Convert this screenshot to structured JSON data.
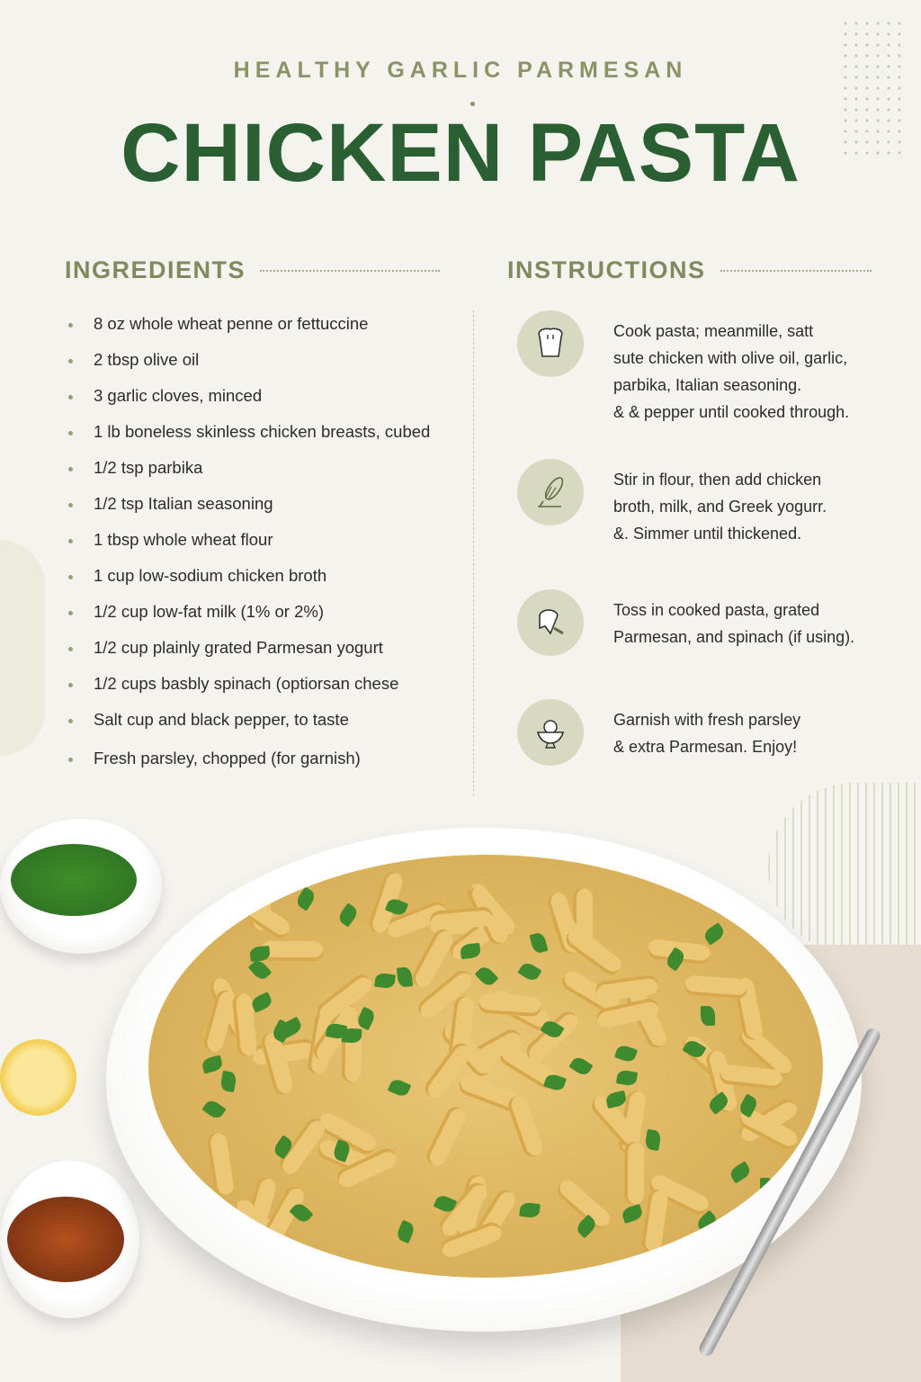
{
  "header": {
    "kicker": "HEALTHY GARLIC PARMESAN",
    "title": "CHICKEN PASTA"
  },
  "ingredients": {
    "heading": "INGREDIENTS",
    "items": [
      "8 oz whole wheat penne or fettuccine",
      "2 tbsp olive oil",
      "3 garlic cloves, minced",
      "1 lb boneless skinless chicken breasts, cubed",
      "1/2 tsp parbika",
      "1/2 tsp Italian seasoning",
      "1 tbsp whole wheat flour",
      "1 cup low-sodium chicken broth",
      "1/2 cup low-fat milk (1% or 2%)",
      "1/2 cup plainly grated Parmesan yogurt",
      "1/2 cups basbly spinach (optiorsan chese",
      "Salt cup and black pepper, to taste",
      "Fresh parsley, chopped (for garnish)"
    ]
  },
  "instructions": {
    "heading": "INSTRUCTIONS",
    "steps": [
      {
        "icon": "chef-hat-icon",
        "lines": [
          "Cook pasta; meanmille, satt",
          "sute chicken with olive oil, garlic,",
          "parbika, Italian seasoning.",
          "& & pepper until cooked through."
        ]
      },
      {
        "icon": "whisk-icon",
        "lines": [
          "Stir in flour, then add chicken",
          "broth, milk, and Greek yogurr.",
          "&. Simmer until thickened."
        ]
      },
      {
        "icon": "cheese-grater-icon",
        "lines": [
          "Toss in cooked pasta, grated",
          "Parmesan, and spinach (if using)."
        ]
      },
      {
        "icon": "garnish-bowl-icon",
        "lines": [
          "Garnish with fresh parsley",
          "& extra Parmesan. Enjoy!"
        ]
      }
    ]
  },
  "colors": {
    "title_green": "#2a5f32",
    "accent_olive": "#7f8a5e",
    "icon_bg": "#d7dac0",
    "background": "#f5f3ee"
  }
}
